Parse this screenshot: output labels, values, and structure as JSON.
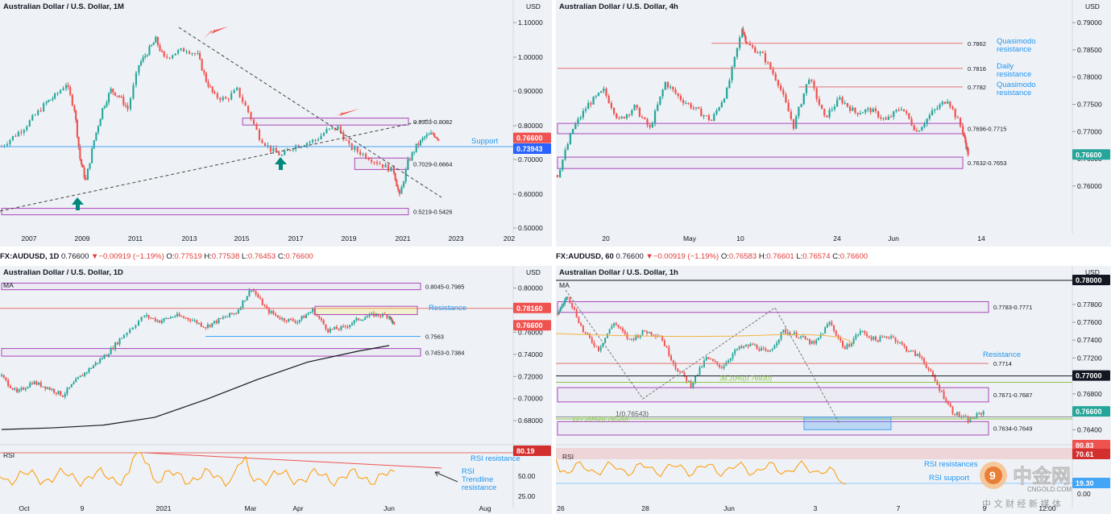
{
  "accent": {
    "bull": "#26a69a",
    "bear": "#ef5350",
    "level": "#e57373",
    "zone": "#ab47bc",
    "support": "#42a5f5",
    "rsi": "#ff9800",
    "ma": "#131722"
  },
  "ohlc_bars": [
    {
      "symbol": "FX:AUDUSD, 1D",
      "last": "0.76600",
      "change": "−0.00919 (−1.19%)",
      "o": "0.77519",
      "h": "0.77538",
      "l": "0.76453",
      "c": "0.76600"
    },
    {
      "symbol": "FX:AUDUSD, 60",
      "last": "0.76600",
      "change": "−0.00919 (−1.19%)",
      "o": "0.76583",
      "h": "0.76601",
      "l": "0.76574",
      "c": "0.76600"
    }
  ],
  "chart_data": [
    {
      "type": "candlestick",
      "title": "Australian Dollar / U.S. Dollar, 1M",
      "currency": "USD",
      "x_ticks": [
        "2007",
        "2009",
        "2011",
        "2013",
        "2015",
        "2017",
        "2019",
        "2021",
        "2023",
        "202"
      ],
      "y_ticks": [
        "1.10000",
        "1.00000",
        "0.90000",
        "0.80000",
        "0.70000",
        "0.60000",
        "0.50000"
      ],
      "ylim": [
        0.485,
        1.135
      ],
      "x_range": [
        2006.0,
        2024.2
      ],
      "price_tag": "0.76600",
      "support_tag": "0.73943",
      "support_text": "Support",
      "zones": [
        {
          "label": "0.8303-0.8082",
          "from": 0.8082,
          "to": 0.8303,
          "x0": 2014.6
        },
        {
          "label": "0.7029-0.6664",
          "from": 0.6664,
          "to": 0.7029,
          "x0": 2018.6
        },
        {
          "label": "0.5219-0.5426",
          "from": 0.5219,
          "to": 0.5426,
          "x0": 2006.0
        }
      ],
      "series": {
        "x": [
          2006.0,
          2006.4,
          2006.8,
          2007.2,
          2007.6,
          2007.9,
          2008.3,
          2008.6,
          2008.8,
          2009.0,
          2009.3,
          2009.6,
          2009.9,
          2010.2,
          2010.5,
          2010.9,
          2011.2,
          2011.5,
          2011.8,
          2012.2,
          2012.6,
          2013.0,
          2013.3,
          2013.6,
          2014.0,
          2014.4,
          2014.8,
          2015.2,
          2015.6,
          2016.0,
          2016.4,
          2016.8,
          2017.2,
          2017.6,
          2018.0,
          2018.4,
          2018.8,
          2019.2,
          2019.6,
          2020.0,
          2020.2,
          2020.5,
          2020.8,
          2021.1,
          2021.4,
          2021.6
        ],
        "close": [
          0.74,
          0.77,
          0.8,
          0.84,
          0.88,
          0.9,
          0.94,
          0.86,
          0.7,
          0.63,
          0.76,
          0.86,
          0.92,
          0.9,
          0.86,
          1.0,
          1.04,
          1.08,
          1.02,
          1.04,
          1.05,
          1.03,
          0.95,
          0.9,
          0.89,
          0.92,
          0.85,
          0.77,
          0.73,
          0.71,
          0.74,
          0.75,
          0.76,
          0.79,
          0.8,
          0.74,
          0.72,
          0.7,
          0.68,
          0.66,
          0.58,
          0.69,
          0.74,
          0.77,
          0.78,
          0.766
        ]
      }
    },
    {
      "type": "candlestick",
      "title": "Australian Dollar / U.S. Dollar, 4h",
      "currency": "USD",
      "x_ticks": [
        "20",
        "May",
        "10",
        "24",
        "Jun",
        "14"
      ],
      "y_ticks": [
        "0.79000",
        "0.78500",
        "0.78000",
        "0.77500",
        "0.77000",
        "0.76500",
        "0.76000"
      ],
      "ylim": [
        0.7545,
        0.7915
      ],
      "x_range": [
        0,
        100
      ],
      "price_tag": "0.76600",
      "levels": [
        {
          "value": 0.7862,
          "label": "0.7862",
          "text": "Quasimodo resistance",
          "x0": 30
        },
        {
          "value": 0.7816,
          "label": "0.7816",
          "text": "Daily resistance",
          "x0": 0
        },
        {
          "value": 0.7782,
          "label": "0.7782",
          "text": "Quasimodo resistance",
          "x0": 47
        }
      ],
      "zones": [
        {
          "label": "0.7696-0.7715",
          "from": 0.7696,
          "to": 0.7715
        },
        {
          "label": "0.7632-0.7653",
          "from": 0.7632,
          "to": 0.7653
        }
      ],
      "series": {
        "x": [
          0,
          3,
          6,
          9,
          12,
          15,
          18,
          21,
          24,
          27,
          30,
          33,
          36,
          37,
          40,
          43,
          46,
          49,
          52,
          55,
          58,
          61,
          64,
          67,
          70,
          73,
          76,
          79,
          80
        ],
        "close": [
          0.762,
          0.7705,
          0.775,
          0.7775,
          0.772,
          0.7745,
          0.7705,
          0.779,
          0.776,
          0.774,
          0.772,
          0.7775,
          0.789,
          0.786,
          0.784,
          0.779,
          0.771,
          0.78,
          0.7725,
          0.776,
          0.7735,
          0.774,
          0.772,
          0.7745,
          0.77,
          0.7735,
          0.776,
          0.77,
          0.766
        ]
      }
    },
    {
      "type": "candlestick",
      "title": "Australian Dollar / U.S. Dollar, 1D",
      "currency": "USD",
      "indicator_ma": "MA",
      "indicator_rsi": "RSI",
      "x_ticks": [
        "Oct",
        "9",
        "2021",
        "Mar",
        "Apr",
        "Jun",
        "Aug"
      ],
      "y_ticks": [
        "0.80000",
        "0.78000",
        "0.76000",
        "0.74000",
        "0.72000",
        "0.70000",
        "0.68000"
      ],
      "ylim": [
        0.667,
        0.8055
      ],
      "x_range": [
        0,
        100
      ],
      "level_tag": "0.78160",
      "level_text": "Resistance",
      "price_tag": "0.76600",
      "levels": [
        {
          "value": 0.7816,
          "label": "0.78160"
        },
        {
          "value": 0.7563,
          "label": "0.7563",
          "x0": 41
        }
      ],
      "zones": [
        {
          "label": "0.8045-0.7985",
          "from": 0.7985,
          "to": 0.8045
        },
        {
          "label": "0.7453-0.7384",
          "from": 0.7384,
          "to": 0.7453
        }
      ],
      "series": {
        "x": [
          0,
          3,
          6,
          9,
          12,
          15,
          18,
          21,
          24,
          28,
          31,
          34,
          37,
          40,
          43,
          46,
          49,
          52,
          55,
          58,
          61,
          64,
          67,
          70,
          73,
          76,
          77
        ],
        "close": [
          0.72,
          0.705,
          0.715,
          0.71,
          0.703,
          0.718,
          0.73,
          0.742,
          0.758,
          0.775,
          0.77,
          0.775,
          0.772,
          0.765,
          0.772,
          0.778,
          0.8,
          0.78,
          0.772,
          0.77,
          0.78,
          0.762,
          0.764,
          0.772,
          0.776,
          0.775,
          0.766
        ]
      },
      "ma": {
        "x": [
          0,
          10,
          20,
          30,
          40,
          50,
          60,
          70,
          76
        ],
        "y": [
          0.672,
          0.6735,
          0.676,
          0.683,
          0.699,
          0.717,
          0.733,
          0.743,
          0.748
        ]
      },
      "rsi": {
        "y_ticks": [
          "50.00",
          "25.00"
        ],
        "tag": "80.19",
        "resistance_text": "RSI resistance",
        "trendline_text": "RSI Trendline resistance"
      }
    },
    {
      "type": "candlestick",
      "title": "Australian Dollar / U.S. Dollar, 1h",
      "currency": "USD",
      "indicator_ma": "MA",
      "indicator_rsi": "RSI",
      "x_ticks": [
        "26",
        "28",
        "Jun",
        "3",
        "7",
        "9",
        "12:00"
      ],
      "y_ticks": [
        "0.77800",
        "0.77600",
        "0.77400",
        "0.77200",
        "0.77000",
        "0.76800",
        "0.76400"
      ],
      "ylim": [
        0.7625,
        0.7805
      ],
      "x_range": [
        0,
        100
      ],
      "top_tag": "0.78000",
      "level_tag": "0.77000",
      "price_tag": "0.76600",
      "levels": [
        {
          "value": 0.7714,
          "label": "0.7714",
          "text": "Resistance"
        }
      ],
      "fib": [
        {
          "value": 0.7693,
          "label": "38.20%(0.76930)"
        },
        {
          "value": 0.76543,
          "label": "1(0.76543)"
        },
        {
          "value": 0.7652,
          "label": "127.20%(0.76520)"
        }
      ],
      "zones": [
        {
          "label": "0.7783-0.7771",
          "from": 0.7771,
          "to": 0.7783
        },
        {
          "label": "0.7671-0.7687",
          "from": 0.7671,
          "to": 0.7687
        },
        {
          "label": "0.7634-0.7649",
          "from": 0.7634,
          "to": 0.7649
        }
      ],
      "series": {
        "x": [
          0,
          2,
          5,
          8,
          11,
          14,
          17,
          20,
          23,
          26,
          29,
          32,
          35,
          38,
          41,
          44,
          47,
          50,
          53,
          56,
          59,
          62,
          65,
          68,
          71,
          74,
          77,
          80,
          83
        ],
        "close": [
          0.777,
          0.779,
          0.775,
          0.773,
          0.776,
          0.774,
          0.775,
          0.7745,
          0.771,
          0.769,
          0.772,
          0.771,
          0.773,
          0.7735,
          0.7725,
          0.775,
          0.7745,
          0.7735,
          0.776,
          0.773,
          0.775,
          0.774,
          0.7745,
          0.773,
          0.772,
          0.769,
          0.766,
          0.765,
          0.766
        ]
      },
      "rsi": {
        "y_ticks": [
          "0.00"
        ],
        "tags": [
          "80.83",
          "70.61",
          "19.30"
        ],
        "resistance_text": "RSI resistances",
        "support_text": "RSI support"
      }
    }
  ],
  "watermark": {
    "brand": "中金网",
    "url": "CNGOLD.COM",
    "slogan": "中 文 财 经 新 媒 体"
  }
}
